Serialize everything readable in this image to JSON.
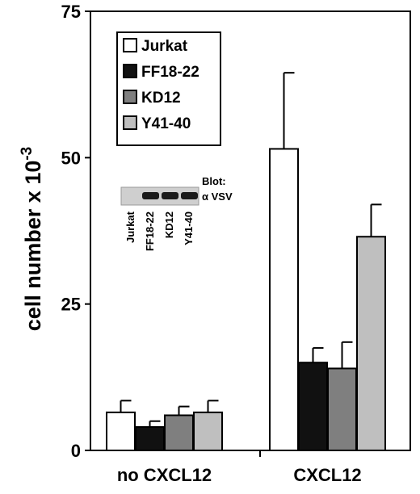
{
  "chart_data": {
    "type": "bar",
    "categories": [
      "no CXCL12",
      "CXCL12"
    ],
    "series": [
      {
        "name": "Jurkat",
        "values": [
          6.5,
          51.5
        ],
        "errors": [
          2.0,
          13.0
        ],
        "color": "#ffffff"
      },
      {
        "name": "FF18-22",
        "values": [
          4.0,
          15.0
        ],
        "errors": [
          1.0,
          2.5
        ],
        "color": "#111111"
      },
      {
        "name": "KD12",
        "values": [
          6.0,
          14.0
        ],
        "errors": [
          1.5,
          4.5
        ],
        "color": "#7f7f7f"
      },
      {
        "name": "Y41-40",
        "values": [
          6.5,
          36.5
        ],
        "errors": [
          2.0,
          5.5
        ],
        "color": "#bfbfbf"
      }
    ],
    "ylabel": "cell number x 10",
    "ylabel_exponent": "-3",
    "ylim": [
      0,
      75
    ],
    "yticks": [
      "0",
      "25",
      "50",
      "75"
    ],
    "legend_placement": "top-left inside plot",
    "grid": false,
    "inset": {
      "blot_title": "Blot:",
      "blot_antibody": "α VSV",
      "lanes": [
        "Jurkat",
        "FF18-22",
        "KD12",
        "Y41-40"
      ],
      "band_present": [
        false,
        true,
        true,
        true
      ]
    }
  }
}
